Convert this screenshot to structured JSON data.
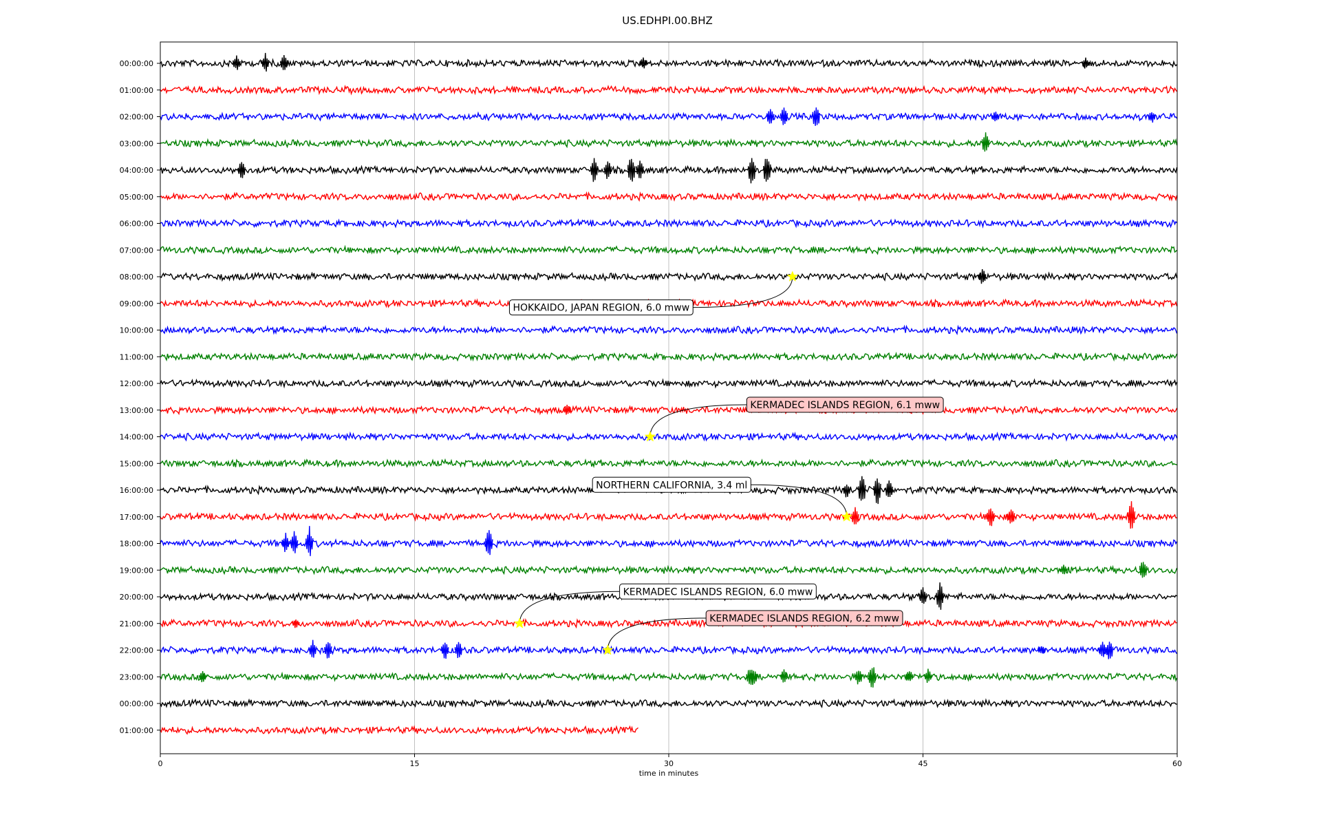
{
  "chart_data": {
    "type": "line",
    "title": "US.EDHPI.00.BHZ",
    "xlabel": "time in minutes",
    "ylabel": "",
    "xlim": [
      0,
      60
    ],
    "x_ticks": [
      0,
      15,
      30,
      45,
      60
    ],
    "x_tick_labels": [
      "0",
      "15",
      "30",
      "45",
      "60"
    ],
    "grid": "vertical",
    "trace_colors": [
      "#000000",
      "#ff0000",
      "#0000ff",
      "#008000"
    ],
    "marker_color": "#ffff00",
    "rows": [
      {
        "label": "00:00:00",
        "end_minute": 60
      },
      {
        "label": "01:00:00",
        "end_minute": 60
      },
      {
        "label": "02:00:00",
        "end_minute": 60
      },
      {
        "label": "03:00:00",
        "end_minute": 60
      },
      {
        "label": "04:00:00",
        "end_minute": 60
      },
      {
        "label": "05:00:00",
        "end_minute": 60
      },
      {
        "label": "06:00:00",
        "end_minute": 60
      },
      {
        "label": "07:00:00",
        "end_minute": 60
      },
      {
        "label": "08:00:00",
        "end_minute": 60
      },
      {
        "label": "09:00:00",
        "end_minute": 60
      },
      {
        "label": "10:00:00",
        "end_minute": 60
      },
      {
        "label": "11:00:00",
        "end_minute": 60
      },
      {
        "label": "12:00:00",
        "end_minute": 60
      },
      {
        "label": "13:00:00",
        "end_minute": 60
      },
      {
        "label": "14:00:00",
        "end_minute": 60
      },
      {
        "label": "15:00:00",
        "end_minute": 60
      },
      {
        "label": "16:00:00",
        "end_minute": 60
      },
      {
        "label": "17:00:00",
        "end_minute": 60
      },
      {
        "label": "18:00:00",
        "end_minute": 60
      },
      {
        "label": "19:00:00",
        "end_minute": 60
      },
      {
        "label": "20:00:00",
        "end_minute": 60
      },
      {
        "label": "21:00:00",
        "end_minute": 60
      },
      {
        "label": "22:00:00",
        "end_minute": 60
      },
      {
        "label": "23:00:00",
        "end_minute": 60
      },
      {
        "label": "00:00:00",
        "end_minute": 60
      },
      {
        "label": "01:00:00",
        "end_minute": 28.2
      }
    ],
    "spikes": [
      {
        "row": 0,
        "minute": 4.5,
        "amp": 0.5
      },
      {
        "row": 0,
        "minute": 6.2,
        "amp": 0.6
      },
      {
        "row": 0,
        "minute": 7.3,
        "amp": 0.6
      },
      {
        "row": 0,
        "minute": 28.5,
        "amp": 0.35
      },
      {
        "row": 0,
        "minute": 54.6,
        "amp": 0.35
      },
      {
        "row": 2,
        "minute": 36.0,
        "amp": 0.55
      },
      {
        "row": 2,
        "minute": 36.8,
        "amp": 0.6
      },
      {
        "row": 2,
        "minute": 38.7,
        "amp": 0.8
      },
      {
        "row": 2,
        "minute": 49.3,
        "amp": 0.35
      },
      {
        "row": 2,
        "minute": 58.5,
        "amp": 0.4
      },
      {
        "row": 3,
        "minute": 48.7,
        "amp": 0.7
      },
      {
        "row": 4,
        "minute": 4.8,
        "amp": 0.55
      },
      {
        "row": 4,
        "minute": 25.6,
        "amp": 0.9
      },
      {
        "row": 4,
        "minute": 26.4,
        "amp": 0.6
      },
      {
        "row": 4,
        "minute": 27.8,
        "amp": 1.0
      },
      {
        "row": 4,
        "minute": 28.3,
        "amp": 0.6
      },
      {
        "row": 4,
        "minute": 34.9,
        "amp": 1.0
      },
      {
        "row": 4,
        "minute": 35.8,
        "amp": 1.0
      },
      {
        "row": 8,
        "minute": 48.5,
        "amp": 0.5
      },
      {
        "row": 13,
        "minute": 24.0,
        "amp": 0.35
      },
      {
        "row": 16,
        "minute": 40.5,
        "amp": 0.5
      },
      {
        "row": 16,
        "minute": 41.4,
        "amp": 1.0
      },
      {
        "row": 16,
        "minute": 42.3,
        "amp": 1.0
      },
      {
        "row": 16,
        "minute": 43.0,
        "amp": 0.6
      },
      {
        "row": 17,
        "minute": 41.0,
        "amp": 0.7
      },
      {
        "row": 17,
        "minute": 49.0,
        "amp": 0.7
      },
      {
        "row": 17,
        "minute": 50.2,
        "amp": 0.6
      },
      {
        "row": 17,
        "minute": 57.3,
        "amp": 0.9
      },
      {
        "row": 18,
        "minute": 7.4,
        "amp": 0.6
      },
      {
        "row": 18,
        "minute": 7.9,
        "amp": 0.7
      },
      {
        "row": 18,
        "minute": 8.8,
        "amp": 1.0
      },
      {
        "row": 18,
        "minute": 19.4,
        "amp": 0.9
      },
      {
        "row": 19,
        "minute": 53.3,
        "amp": 0.3
      },
      {
        "row": 19,
        "minute": 58.0,
        "amp": 0.7
      },
      {
        "row": 20,
        "minute": 45.0,
        "amp": 0.6
      },
      {
        "row": 20,
        "minute": 46.0,
        "amp": 0.9
      },
      {
        "row": 21,
        "minute": 8.0,
        "amp": 0.3
      },
      {
        "row": 22,
        "minute": 9.0,
        "amp": 0.6
      },
      {
        "row": 22,
        "minute": 9.9,
        "amp": 0.6
      },
      {
        "row": 22,
        "minute": 16.8,
        "amp": 0.6
      },
      {
        "row": 22,
        "minute": 17.6,
        "amp": 0.55
      },
      {
        "row": 22,
        "minute": 52.0,
        "amp": 0.3
      },
      {
        "row": 22,
        "minute": 55.6,
        "amp": 0.6
      },
      {
        "row": 22,
        "minute": 56.0,
        "amp": 0.7
      },
      {
        "row": 23,
        "minute": 2.5,
        "amp": 0.4
      },
      {
        "row": 23,
        "minute": 34.8,
        "amp": 0.6
      },
      {
        "row": 23,
        "minute": 35.0,
        "amp": 0.55
      },
      {
        "row": 23,
        "minute": 36.8,
        "amp": 0.45
      },
      {
        "row": 23,
        "minute": 41.2,
        "amp": 0.55
      },
      {
        "row": 23,
        "minute": 42.0,
        "amp": 0.8
      },
      {
        "row": 23,
        "minute": 44.2,
        "amp": 0.4
      },
      {
        "row": 23,
        "minute": 45.3,
        "amp": 0.45
      }
    ],
    "events": [
      {
        "text": "HOKKAIDO, JAPAN REGION, 6.0 mww",
        "row": 8,
        "minute": 37.3,
        "label_row": 9.15,
        "label_minute": 20.6,
        "face": "#ffffff"
      },
      {
        "text": "KERMADEC ISLANDS REGION, 6.1 mww",
        "row": 14,
        "minute": 28.9,
        "label_row": 12.8,
        "label_minute": 34.6,
        "face": "#ffc8c8"
      },
      {
        "text": "NORTHERN CALIFORNIA, 3.4 ml",
        "row": 17,
        "minute": 40.5,
        "label_row": 15.8,
        "label_minute": 25.5,
        "face": "#ffffff"
      },
      {
        "text": "KERMADEC ISLANDS REGION, 6.0 mww",
        "row": 21,
        "minute": 21.2,
        "label_row": 19.8,
        "label_minute": 27.1,
        "face": "#ffffff"
      },
      {
        "text": "KERMADEC ISLANDS REGION, 6.2 mww",
        "row": 22,
        "minute": 26.4,
        "label_row": 20.8,
        "label_minute": 32.2,
        "face": "#ffc8c8"
      }
    ]
  }
}
